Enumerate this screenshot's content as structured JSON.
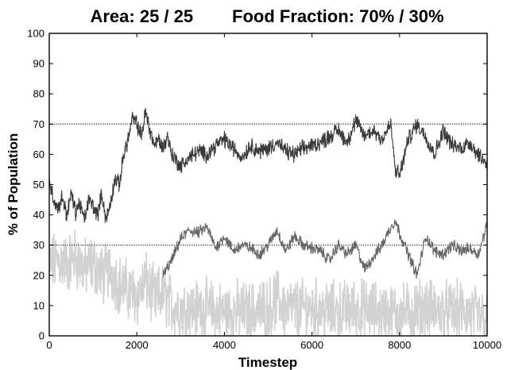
{
  "chart_data": {
    "type": "line",
    "title": "Area: 25 / 25        Food Fraction: 70% / 30%",
    "xlabel": "Timestep",
    "ylabel": "% of Population",
    "xlim": [
      0,
      10000
    ],
    "ylim": [
      0,
      100
    ],
    "xticks": [
      0,
      2000,
      4000,
      6000,
      8000,
      10000
    ],
    "yticks": [
      0,
      10,
      20,
      30,
      40,
      50,
      60,
      70,
      80,
      90,
      100
    ],
    "grid": false,
    "reference_lines": [
      {
        "y": 70,
        "style": "dotted",
        "color": "#555555"
      },
      {
        "y": 30,
        "style": "dotted",
        "color": "#555555"
      }
    ],
    "series": [
      {
        "color": "#3a3a3a",
        "noise": 2.2,
        "x": [
          0,
          100,
          200,
          300,
          400,
          500,
          600,
          700,
          800,
          900,
          1000,
          1100,
          1200,
          1300,
          1400,
          1500,
          1600,
          1700,
          1800,
          1900,
          2000,
          2100,
          2200,
          2300,
          2400,
          2500,
          2600,
          2700,
          2800,
          2900,
          3000,
          3200,
          3400,
          3600,
          3800,
          4000,
          4200,
          4400,
          4600,
          4800,
          5000,
          5200,
          5400,
          5600,
          5800,
          6000,
          6200,
          6400,
          6600,
          6800,
          7000,
          7200,
          7400,
          7600,
          7800,
          7900,
          8000,
          8200,
          8400,
          8600,
          8800,
          9000,
          9200,
          9400,
          9600,
          9800,
          10000
        ],
        "values": [
          52,
          45,
          42,
          46,
          40,
          47,
          41,
          44,
          38,
          45,
          43,
          40,
          47,
          38,
          44,
          52,
          50,
          60,
          65,
          72,
          70,
          66,
          74,
          68,
          63,
          65,
          62,
          66,
          60,
          58,
          56,
          59,
          61,
          60,
          63,
          65,
          62,
          59,
          63,
          61,
          62,
          64,
          61,
          60,
          62,
          63,
          64,
          66,
          68,
          64,
          71,
          66,
          68,
          65,
          70,
          55,
          53,
          65,
          70,
          66,
          60,
          68,
          63,
          62,
          64,
          60,
          57
        ]
      },
      {
        "color": "#666666",
        "noise": 1.6,
        "x": [
          2600,
          2800,
          3000,
          3200,
          3400,
          3600,
          3800,
          4000,
          4200,
          4400,
          4600,
          4800,
          5000,
          5200,
          5400,
          5600,
          5800,
          6000,
          6200,
          6400,
          6600,
          6800,
          7000,
          7200,
          7400,
          7600,
          7800,
          7900,
          8000,
          8200,
          8400,
          8600,
          8800,
          9000,
          9200,
          9400,
          9600,
          9800,
          10000
        ],
        "values": [
          20,
          25,
          32,
          35,
          34,
          36,
          29,
          33,
          28,
          30,
          29,
          27,
          30,
          35,
          28,
          33,
          30,
          29,
          28,
          25,
          30,
          27,
          30,
          22,
          26,
          30,
          36,
          38,
          34,
          27,
          20,
          33,
          28,
          27,
          30,
          28,
          29,
          27,
          37
        ]
      },
      {
        "color": "#d2d2d2",
        "noise": 8.0,
        "x": [
          0,
          200,
          400,
          600,
          800,
          1000,
          1200,
          1400,
          1600,
          1800,
          2000,
          2200,
          2400,
          2600,
          2800,
          3000,
          3200,
          3500,
          3800,
          4200,
          4600,
          5000,
          5200,
          5400,
          6000,
          6500,
          7000,
          7500,
          8000,
          8500,
          9000,
          9500,
          10000
        ],
        "values": [
          23,
          25,
          24,
          26,
          22,
          24,
          20,
          22,
          17,
          15,
          13,
          18,
          12,
          14,
          10,
          9,
          9,
          9,
          8,
          8,
          8,
          9,
          12,
          9,
          9,
          8,
          9,
          8,
          7,
          9,
          8,
          8,
          5
        ]
      }
    ]
  }
}
